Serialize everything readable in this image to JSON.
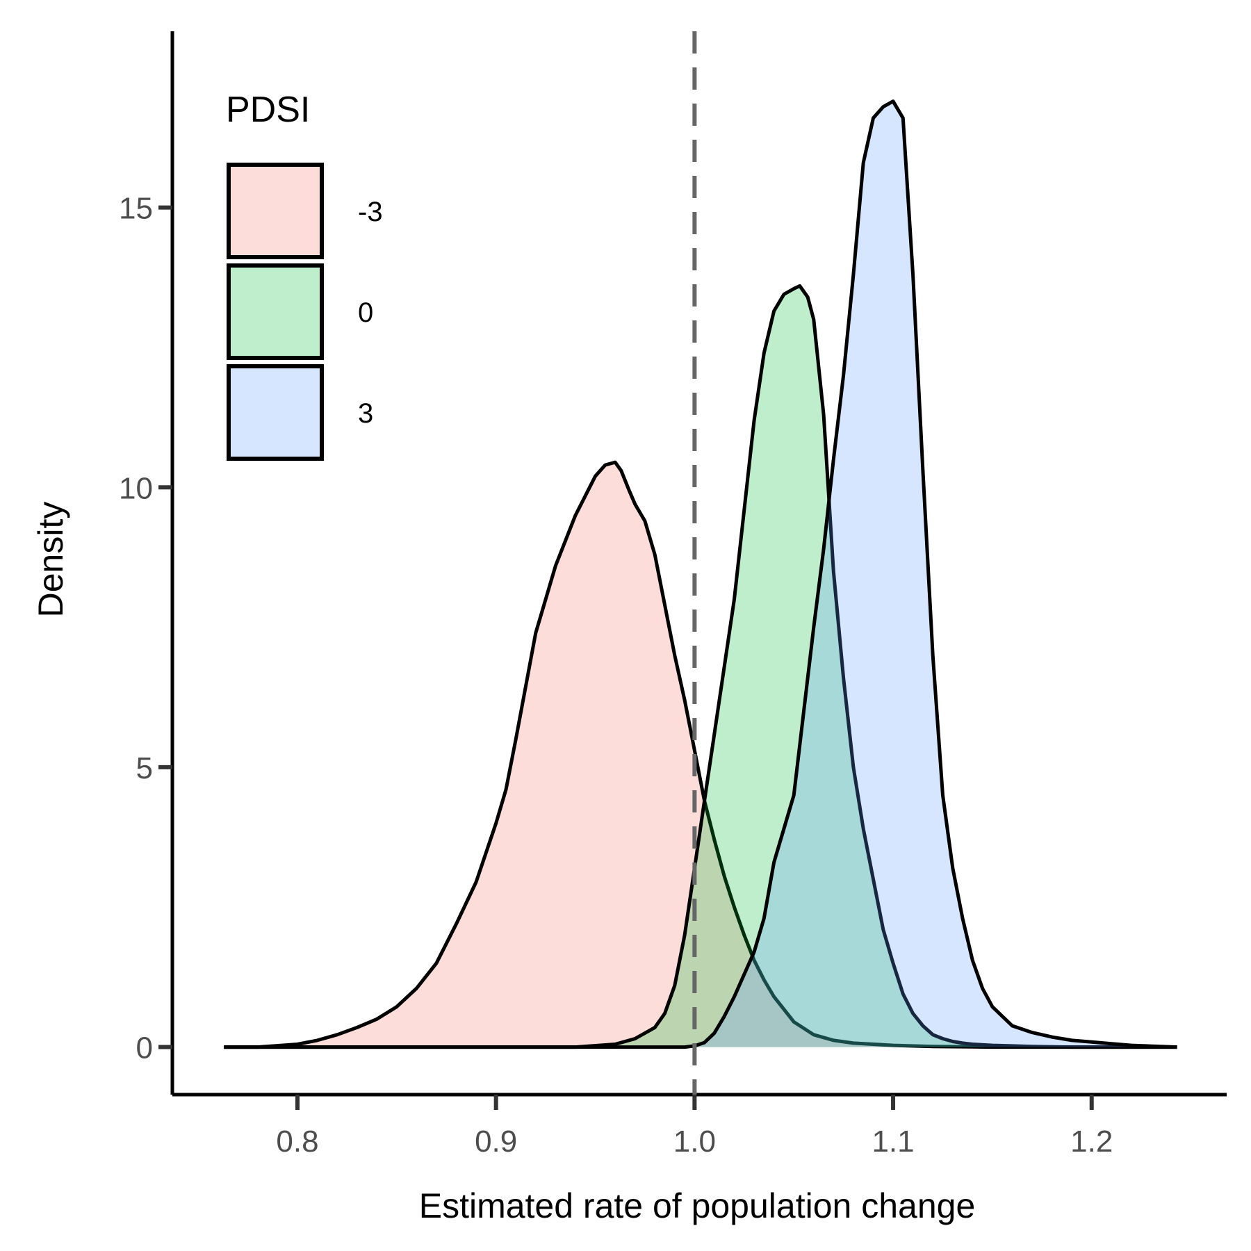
{
  "chart_data": {
    "type": "area",
    "subtype": "density",
    "xlabel": "Estimated rate of population change",
    "ylabel": "Density",
    "xlim": [
      0.737,
      1.268
    ],
    "ylim": [
      -0.85,
      18.15
    ],
    "x_ticks": [
      0.8,
      0.9,
      1.0,
      1.1,
      1.2
    ],
    "x_tick_labels": [
      "0.8",
      "0.9",
      "1.0",
      "1.1",
      "1.2"
    ],
    "y_ticks": [
      0,
      5,
      10,
      15
    ],
    "y_tick_labels": [
      "0",
      "5",
      "10",
      "15"
    ],
    "reference_line": {
      "x": 1.0,
      "style": "dashed",
      "color": "#666666"
    },
    "grid": false,
    "legend": {
      "title": "PDSI",
      "position": "top-left"
    },
    "series": [
      {
        "name": "-3",
        "fill": "#F8766D",
        "opacity": 0.25,
        "x": [
          0.763,
          0.78,
          0.8,
          0.81,
          0.82,
          0.83,
          0.84,
          0.85,
          0.86,
          0.87,
          0.88,
          0.89,
          0.9,
          0.905,
          0.91,
          0.92,
          0.93,
          0.94,
          0.95,
          0.955,
          0.96,
          0.963,
          0.967,
          0.97,
          0.975,
          0.98,
          0.985,
          0.99,
          0.995,
          1.0,
          1.005,
          1.01,
          1.015,
          1.02,
          1.025,
          1.03,
          1.035,
          1.04,
          1.05,
          1.06,
          1.07,
          1.08,
          1.09,
          1.1,
          1.12,
          1.15,
          1.2,
          1.243
        ],
        "y": [
          0.0,
          0.0,
          0.05,
          0.12,
          0.22,
          0.35,
          0.5,
          0.72,
          1.05,
          1.5,
          2.2,
          2.95,
          4.0,
          4.6,
          5.5,
          7.4,
          8.6,
          9.5,
          10.2,
          10.4,
          10.45,
          10.3,
          9.95,
          9.7,
          9.4,
          8.8,
          7.9,
          7.0,
          6.2,
          5.3,
          4.4,
          3.7,
          3.05,
          2.5,
          2.0,
          1.55,
          1.2,
          0.9,
          0.45,
          0.22,
          0.12,
          0.07,
          0.05,
          0.03,
          0.01,
          0.0,
          0.0,
          0.0
        ]
      },
      {
        "name": "0",
        "fill": "#00BA38",
        "opacity": 0.25,
        "x": [
          0.763,
          0.9,
          0.94,
          0.96,
          0.97,
          0.98,
          0.985,
          0.99,
          0.995,
          1.0,
          1.005,
          1.01,
          1.015,
          1.02,
          1.025,
          1.03,
          1.035,
          1.04,
          1.045,
          1.05,
          1.053,
          1.057,
          1.06,
          1.065,
          1.07,
          1.075,
          1.08,
          1.085,
          1.09,
          1.095,
          1.1,
          1.105,
          1.11,
          1.115,
          1.12,
          1.125,
          1.13,
          1.135,
          1.14,
          1.15,
          1.16,
          1.17,
          1.19,
          1.243
        ],
        "y": [
          0.0,
          0.0,
          0.0,
          0.05,
          0.15,
          0.35,
          0.6,
          1.1,
          2.0,
          3.2,
          4.4,
          5.6,
          6.8,
          8.0,
          9.6,
          11.2,
          12.4,
          13.15,
          13.45,
          13.55,
          13.6,
          13.4,
          13.0,
          11.3,
          8.5,
          6.6,
          5.0,
          3.9,
          3.0,
          2.1,
          1.5,
          0.95,
          0.6,
          0.38,
          0.22,
          0.15,
          0.1,
          0.07,
          0.05,
          0.03,
          0.02,
          0.01,
          0.0,
          0.0
        ]
      },
      {
        "name": "3",
        "fill": "#619CFF",
        "opacity": 0.25,
        "x": [
          0.763,
          0.98,
          0.995,
          1.0,
          1.005,
          1.01,
          1.015,
          1.02,
          1.025,
          1.03,
          1.035,
          1.04,
          1.045,
          1.05,
          1.055,
          1.06,
          1.065,
          1.07,
          1.075,
          1.08,
          1.085,
          1.09,
          1.095,
          1.1,
          1.105,
          1.11,
          1.115,
          1.12,
          1.125,
          1.13,
          1.135,
          1.14,
          1.145,
          1.15,
          1.155,
          1.16,
          1.165,
          1.17,
          1.175,
          1.18,
          1.19,
          1.2,
          1.21,
          1.22,
          1.243
        ],
        "y": [
          0.0,
          0.0,
          0.0,
          0.02,
          0.08,
          0.25,
          0.55,
          0.9,
          1.3,
          1.7,
          2.3,
          3.3,
          3.9,
          4.5,
          6.0,
          7.5,
          8.9,
          10.5,
          12.0,
          13.8,
          15.8,
          16.6,
          16.8,
          16.9,
          16.6,
          13.8,
          10.3,
          7.0,
          4.5,
          3.2,
          2.3,
          1.55,
          1.05,
          0.72,
          0.55,
          0.38,
          0.32,
          0.26,
          0.22,
          0.18,
          0.12,
          0.09,
          0.06,
          0.03,
          0.0
        ]
      }
    ]
  }
}
